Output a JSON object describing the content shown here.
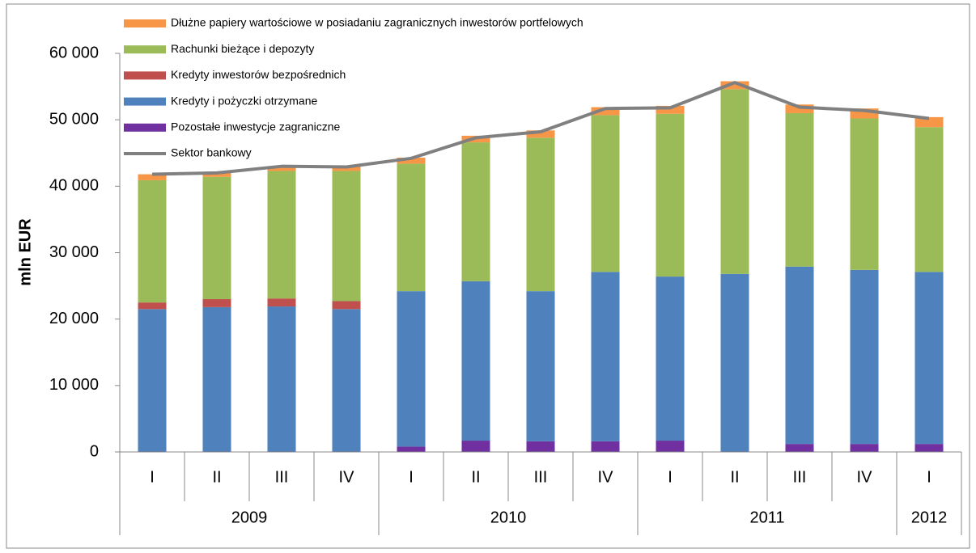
{
  "chart_data": {
    "type": "bar",
    "stacked": true,
    "ylabel": "mln EUR",
    "categories": [
      "I",
      "II",
      "III",
      "IV",
      "I",
      "II",
      "III",
      "IV",
      "I",
      "II",
      "III",
      "IV",
      "I"
    ],
    "groups": [
      {
        "label": "2009",
        "count": 4
      },
      {
        "label": "2010",
        "count": 4
      },
      {
        "label": "2011",
        "count": 4
      },
      {
        "label": "2012",
        "count": 1
      }
    ],
    "series": [
      {
        "name": "Pozostałe inwestycje zagraniczne",
        "color": "#7030a0",
        "values": [
          0,
          0,
          0,
          0,
          800,
          1700,
          1600,
          1600,
          1700,
          0,
          1200,
          1200,
          1200
        ]
      },
      {
        "name": "Kredyty i pożyczki otrzymane",
        "color": "#4f81bd",
        "values": [
          21500,
          21800,
          21900,
          21500,
          23400,
          24000,
          22600,
          25500,
          24700,
          26800,
          26700,
          26200,
          25900
        ]
      },
      {
        "name": "Kredyty inwestorów bezpośrednich",
        "color": "#c0504d",
        "values": [
          1000,
          1200,
          1200,
          1200,
          0,
          0,
          0,
          0,
          0,
          0,
          0,
          0,
          0
        ]
      },
      {
        "name": "Rachunki bieżące i depozyty",
        "color": "#9bbb59",
        "values": [
          18400,
          18400,
          19200,
          19600,
          19200,
          20900,
          23100,
          23600,
          24500,
          27800,
          23100,
          22800,
          21800
        ]
      },
      {
        "name": "Dłużne papiery wartościowe w posiadaniu zagranicznych inwestorów portfelowych",
        "color": "#f79646",
        "values": [
          900,
          700,
          600,
          700,
          900,
          1000,
          1100,
          1200,
          1200,
          1200,
          1300,
          1500,
          1500
        ]
      },
      {
        "name": "Sektor bankowy",
        "color": "#808080",
        "type": "line",
        "values": [
          41800,
          42000,
          43000,
          42900,
          44200,
          47300,
          48200,
          51700,
          51800,
          55600,
          51900,
          51400,
          50200
        ]
      }
    ],
    "ylim": [
      0,
      60000
    ],
    "yticks": [
      0,
      {
        "value": 10000,
        "label": "10 000"
      },
      {
        "value": 20000,
        "label": "20 000"
      },
      {
        "value": 30000,
        "label": "30 000"
      },
      {
        "value": 40000,
        "label": "40 000"
      },
      {
        "value": 50000,
        "label": "50 000"
      },
      {
        "value": 60000,
        "label": "60 000"
      }
    ],
    "legend": "top-left"
  }
}
